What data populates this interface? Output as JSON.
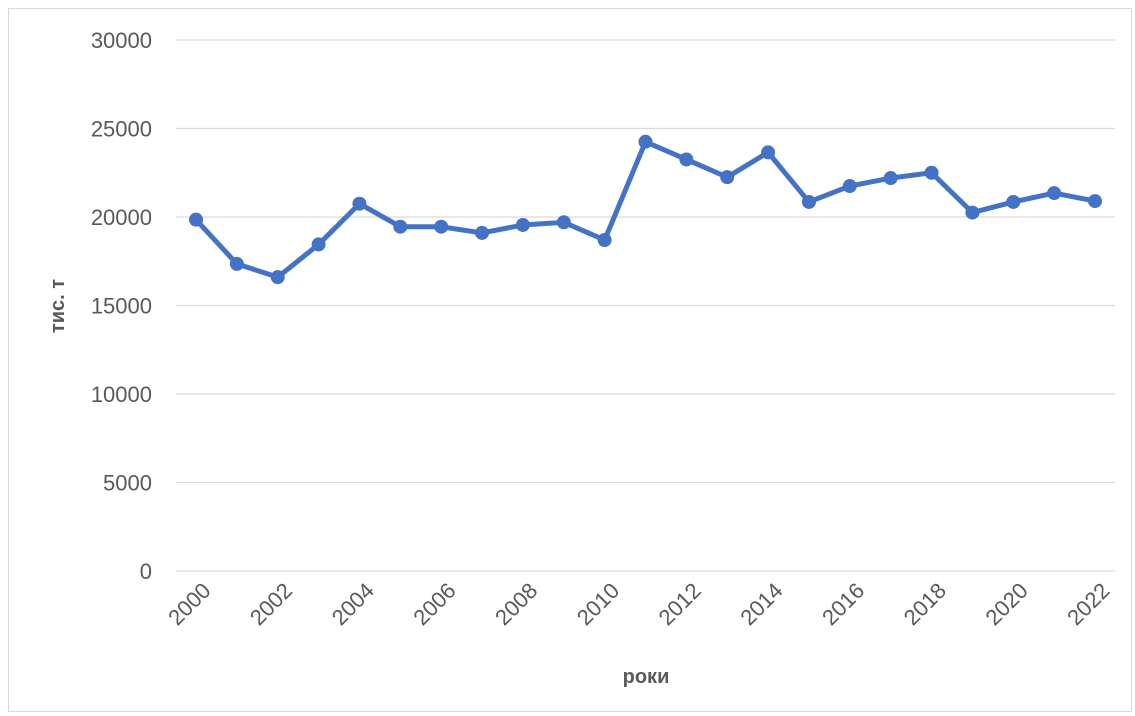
{
  "colors": {
    "series": "#4472c4",
    "grid": "#d9d9d9",
    "text": "#595959",
    "border": "#d9d9d9"
  },
  "chart_data": {
    "type": "line",
    "title": "",
    "xlabel": "роки",
    "ylabel": "тис. т",
    "ylim": [
      0,
      30000
    ],
    "yticks": [
      "0",
      "5000",
      "10000",
      "15000",
      "20000",
      "25000",
      "30000"
    ],
    "xticks": [
      "2000",
      "2002",
      "2004",
      "2006",
      "2008",
      "2010",
      "2012",
      "2014",
      "2016",
      "2018",
      "2020",
      "2022"
    ],
    "grid": true,
    "legend": "none",
    "x": [
      2000,
      2001,
      2002,
      2003,
      2004,
      2005,
      2006,
      2007,
      2008,
      2009,
      2010,
      2011,
      2012,
      2013,
      2014,
      2015,
      2016,
      2017,
      2018,
      2019,
      2020,
      2021,
      2022
    ],
    "series": [
      {
        "values": [
          19850,
          17350,
          16600,
          18450,
          20750,
          19450,
          19450,
          19100,
          19550,
          19700,
          18700,
          24250,
          23250,
          22250,
          23650,
          20850,
          21750,
          22200,
          22500,
          20250,
          20850,
          21350,
          20900
        ]
      }
    ]
  }
}
